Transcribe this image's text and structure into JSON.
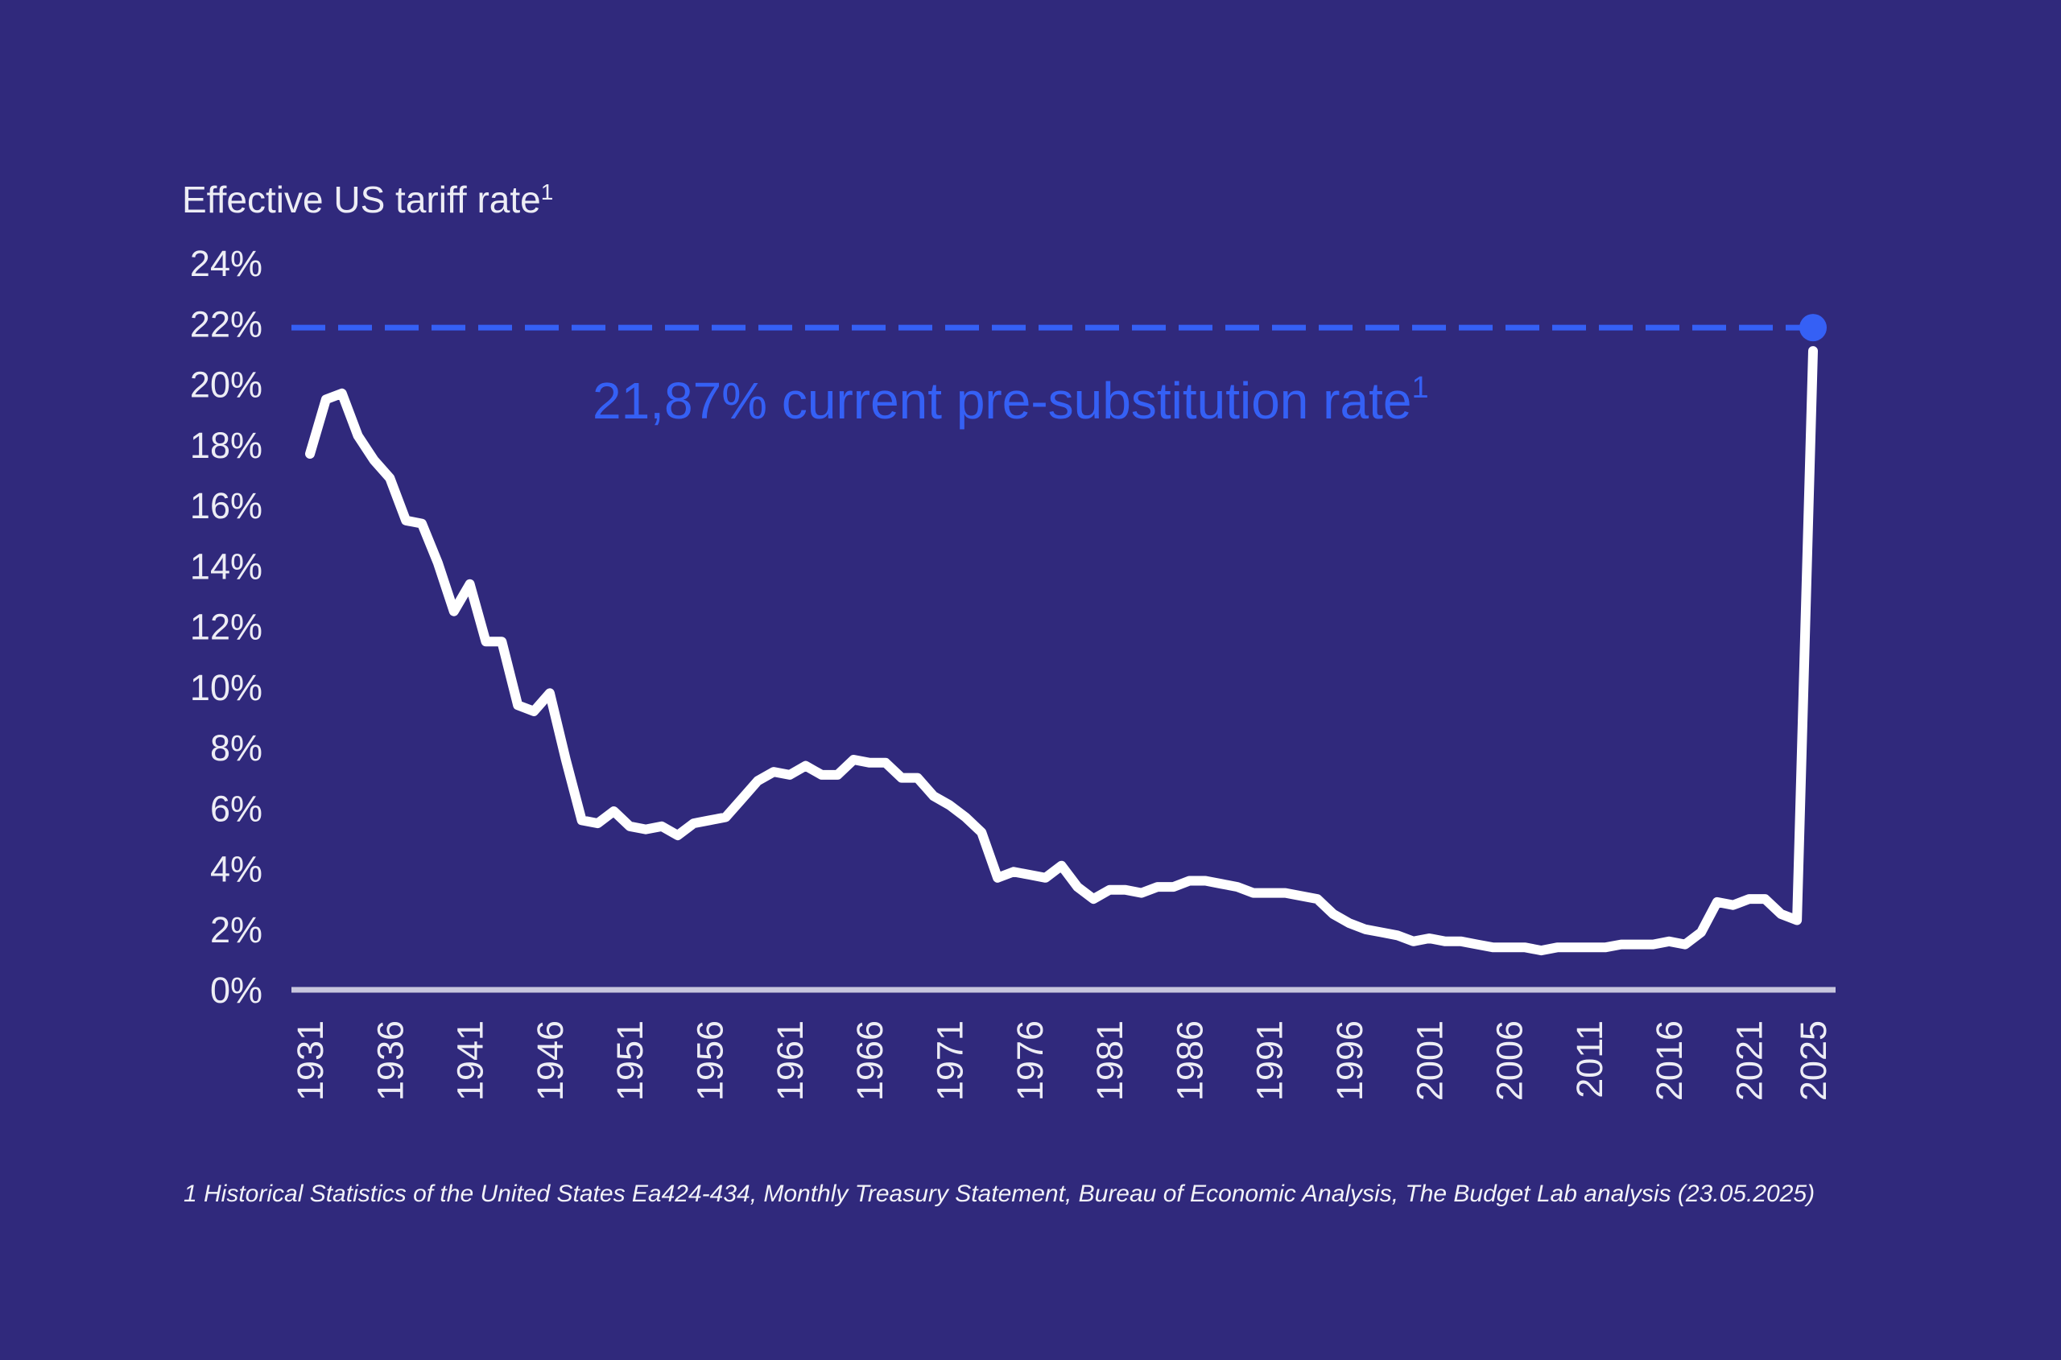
{
  "chart_data": {
    "type": "line",
    "title": "Effective US tariff rate",
    "title_superscript": "1",
    "ylabel": "",
    "xlabel": "",
    "ylim": [
      0,
      24
    ],
    "yticks": [
      "0%",
      "2%",
      "4%",
      "6%",
      "8%",
      "10%",
      "12%",
      "14%",
      "16%",
      "18%",
      "20%",
      "22%",
      "24%"
    ],
    "xticks": [
      "1931",
      "1936",
      "1941",
      "1946",
      "1951",
      "1956",
      "1961",
      "1966",
      "1971",
      "1976",
      "1981",
      "1986",
      "1991",
      "1996",
      "2001",
      "2006",
      "2011",
      "2016",
      "2021",
      "2025"
    ],
    "grid": false,
    "series": [
      {
        "name": "Effective US tariff rate",
        "color": "#FFFFFF",
        "x": [
          1931,
          1932,
          1933,
          1934,
          1935,
          1936,
          1937,
          1938,
          1939,
          1940,
          1941,
          1942,
          1943,
          1944,
          1945,
          1946,
          1947,
          1948,
          1949,
          1950,
          1951,
          1952,
          1953,
          1954,
          1955,
          1956,
          1957,
          1958,
          1959,
          1960,
          1961,
          1962,
          1963,
          1964,
          1965,
          1966,
          1967,
          1968,
          1969,
          1970,
          1971,
          1972,
          1973,
          1974,
          1975,
          1976,
          1977,
          1978,
          1979,
          1980,
          1981,
          1982,
          1983,
          1984,
          1985,
          1986,
          1987,
          1988,
          1989,
          1990,
          1991,
          1992,
          1993,
          1994,
          1995,
          1996,
          1997,
          1998,
          1999,
          2000,
          2001,
          2002,
          2003,
          2004,
          2005,
          2006,
          2007,
          2008,
          2009,
          2010,
          2011,
          2012,
          2013,
          2014,
          2015,
          2016,
          2017,
          2018,
          2019,
          2020,
          2021,
          2022,
          2023,
          2024,
          2025
        ],
        "values": [
          17.7,
          19.5,
          19.7,
          18.3,
          17.5,
          16.9,
          15.5,
          15.4,
          14.1,
          12.5,
          13.4,
          11.5,
          11.5,
          9.4,
          9.2,
          9.8,
          7.6,
          5.6,
          5.5,
          5.9,
          5.4,
          5.3,
          5.4,
          5.1,
          5.5,
          5.6,
          5.7,
          6.3,
          6.9,
          7.2,
          7.1,
          7.4,
          7.1,
          7.1,
          7.6,
          7.5,
          7.5,
          7.0,
          7.0,
          6.4,
          6.1,
          5.7,
          5.2,
          3.7,
          3.9,
          3.8,
          3.7,
          4.1,
          3.4,
          3.0,
          3.3,
          3.3,
          3.2,
          3.4,
          3.4,
          3.6,
          3.6,
          3.5,
          3.4,
          3.2,
          3.2,
          3.2,
          3.1,
          3.0,
          2.5,
          2.2,
          2.0,
          1.9,
          1.8,
          1.6,
          1.7,
          1.6,
          1.6,
          1.5,
          1.4,
          1.4,
          1.4,
          1.3,
          1.4,
          1.4,
          1.4,
          1.4,
          1.5,
          1.5,
          1.5,
          1.6,
          1.5,
          1.9,
          2.9,
          2.8,
          3.0,
          3.0,
          2.5,
          2.3,
          21.1
        ]
      }
    ],
    "reference_line": {
      "value": 21.87,
      "style": "dashed",
      "color": "#3560F5",
      "marker_year": 2025,
      "label": "21,87% current pre-substitution rate",
      "label_superscript": "1"
    },
    "baseline_color": "#C8C6DE"
  },
  "footnote": "1 Historical Statistics of the United States Ea424-434, Monthly Treasury Statement, Bureau of Economic Analysis, The Budget Lab analysis (23.05.2025)"
}
